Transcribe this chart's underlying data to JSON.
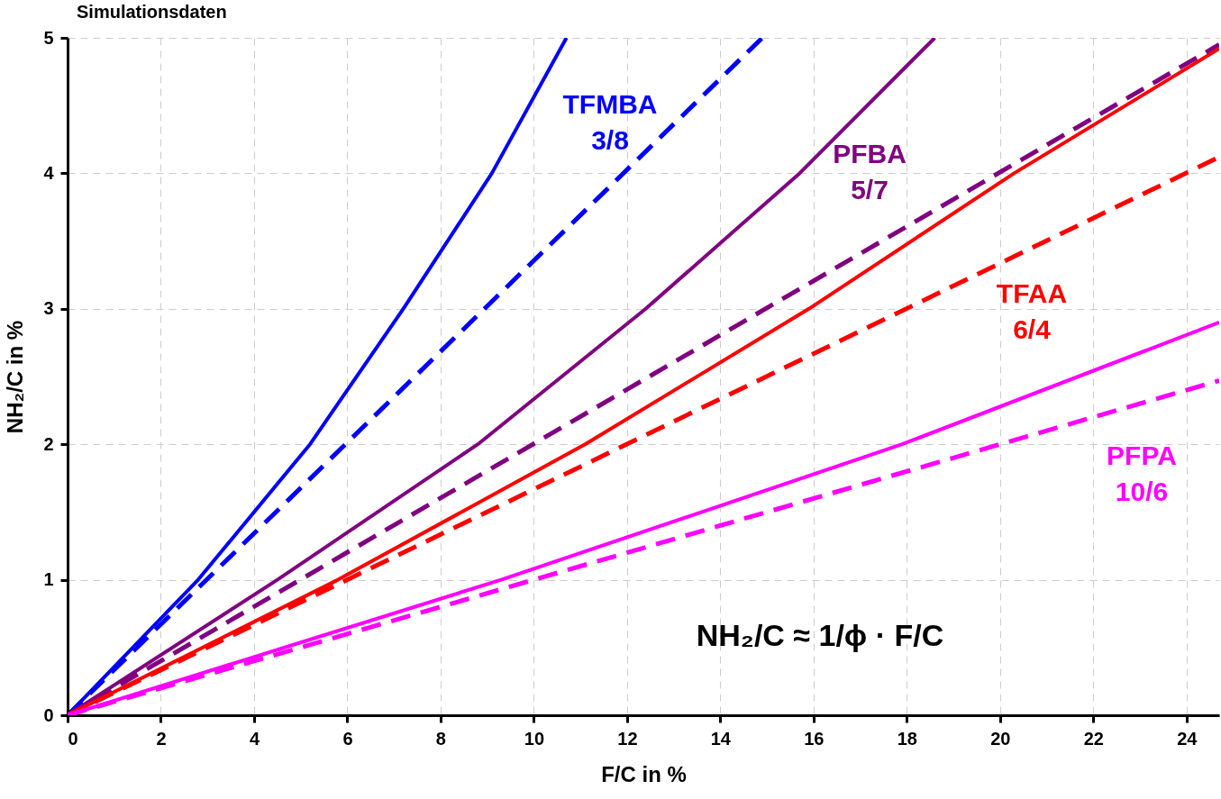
{
  "chart_data": {
    "type": "line",
    "title": "Simulationsdaten",
    "xlabel": "F/C in %",
    "ylabel": "NH₂/C in %",
    "xlim": [
      0,
      24.7
    ],
    "ylim": [
      0,
      5
    ],
    "xticks": [
      0,
      2,
      4,
      6,
      8,
      10,
      12,
      14,
      16,
      18,
      20,
      22,
      24
    ],
    "yticks": [
      0,
      1,
      2,
      3,
      4,
      5
    ],
    "grid": true,
    "series": [
      {
        "color": "#0000ff",
        "line_style": "solid",
        "x": [
          0,
          2.8,
          5.2,
          7.2,
          9.1,
          10.7
        ],
        "values": [
          0,
          1,
          2,
          3,
          4,
          5
        ]
      },
      {
        "color": "#0000ff",
        "line_style": "dashed",
        "x": [
          0,
          14.9
        ],
        "values": [
          0,
          5
        ]
      },
      {
        "color": "#800080",
        "line_style": "solid",
        "x": [
          0,
          4.5,
          8.8,
          12.4,
          15.7,
          18.6
        ],
        "values": [
          0,
          1,
          2,
          3,
          4,
          5
        ]
      },
      {
        "color": "#800080",
        "line_style": "dashed",
        "x": [
          0,
          24.7
        ],
        "values": [
          0,
          4.95
        ]
      },
      {
        "color": "#ff0000",
        "line_style": "solid",
        "x": [
          0,
          5.8,
          11.1,
          15.9,
          20.3,
          24.7
        ],
        "values": [
          0,
          1,
          2,
          3,
          4,
          4.92
        ]
      },
      {
        "color": "#ff0000",
        "line_style": "dashed",
        "x": [
          0,
          24.7
        ],
        "values": [
          0,
          4.12
        ]
      },
      {
        "color": "#ff00ff",
        "line_style": "solid",
        "x": [
          0,
          9.3,
          17.9,
          24.7
        ],
        "values": [
          0,
          1,
          2,
          2.9
        ]
      },
      {
        "color": "#ff00ff",
        "line_style": "dashed",
        "x": [
          0,
          24.7
        ],
        "values": [
          0,
          2.47
        ]
      }
    ],
    "annotations": [
      "TFMBA\n3/8",
      "PFBA\n5/7",
      "TFAA\n6/4",
      "PFPA\n10/6",
      "NH₂/C ≈ 1/ϕ · F/C"
    ]
  }
}
